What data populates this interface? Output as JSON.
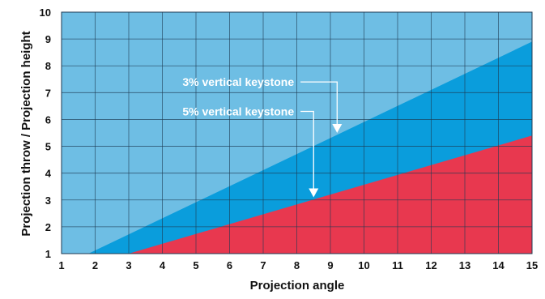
{
  "chart_data": {
    "type": "area",
    "title": "",
    "xlabel": "Projection angle",
    "ylabel": "Projection throw / Projection height",
    "xlim": [
      1,
      15
    ],
    "ylim": [
      1,
      10
    ],
    "x_ticks": [
      1,
      2,
      3,
      4,
      5,
      6,
      7,
      8,
      9,
      10,
      11,
      12,
      13,
      14,
      15
    ],
    "y_ticks": [
      1,
      2,
      3,
      4,
      5,
      6,
      7,
      8,
      9,
      10
    ],
    "grid": true,
    "colors": {
      "background": "#6ebee4",
      "band_3pct": "#0a9ddc",
      "band_5pct": "#e8384f",
      "grid": "#1e3a52",
      "arrow": "#ffffff"
    },
    "series": [
      {
        "name": "3% vertical keystone",
        "x": [
          1.8,
          15
        ],
        "y": [
          1,
          8.9
        ]
      },
      {
        "name": "5% vertical keystone",
        "x": [
          3,
          15
        ],
        "y": [
          1,
          5.4
        ]
      }
    ],
    "annotations": [
      {
        "text": "3% vertical keystone",
        "label_at": [
          4.6,
          7.4
        ],
        "arrow_to": [
          9.2,
          5.5
        ]
      },
      {
        "text": "5% vertical keystone",
        "label_at": [
          4.6,
          6.3
        ],
        "arrow_to": [
          8.5,
          3.1
        ]
      }
    ]
  }
}
